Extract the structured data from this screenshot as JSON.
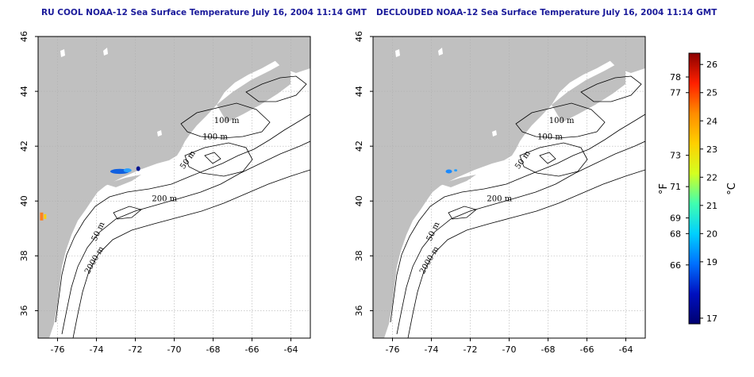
{
  "panels": [
    {
      "id": "left",
      "title": "RU COOL NOAA-12 Sea Surface Temperature July 16, 2004 11:14 GMT",
      "x_ticks": [
        "-76",
        "-74",
        "-72",
        "-70",
        "-68",
        "-66",
        "-64"
      ],
      "y_ticks": [
        "36",
        "38",
        "40",
        "42",
        "44",
        "46"
      ],
      "contour_labels": [
        "100 m",
        "100 m",
        "50 m",
        "200 m",
        "50 m",
        "2000 m"
      ]
    },
    {
      "id": "right",
      "title": "DECLOUDED NOAA-12 Sea Surface Temperature July 16, 2004 11:14 GMT",
      "x_ticks": [
        "-76",
        "-74",
        "-72",
        "-70",
        "-68",
        "-66",
        "-64"
      ],
      "y_ticks": [
        "36",
        "38",
        "40",
        "42",
        "44",
        "46"
      ],
      "contour_labels": [
        "100 m",
        "100 m",
        "50 m",
        "200 m",
        "50 m",
        "2000 m"
      ]
    }
  ],
  "colorbar": {
    "celsius_ticks": [
      "26",
      "25",
      "24",
      "23",
      "22",
      "21",
      "20",
      "19",
      "17"
    ],
    "fahrenheit_ticks": [
      "78",
      "77",
      "73",
      "71",
      "69",
      "68",
      "66"
    ],
    "celsius_unit": "°C",
    "fahrenheit_unit": "°F",
    "colors": [
      "#8b0000",
      "#ff2000",
      "#ff8c00",
      "#ffd000",
      "#d4ff20",
      "#40ffb0",
      "#00d0ff",
      "#0070ff",
      "#0010c0",
      "#000070"
    ]
  },
  "colors": {
    "land": "#c0c0c0",
    "ocean": "#ffffff",
    "contour": "#000000",
    "grid": "#b0b0b0",
    "title": "#1a1a9a"
  }
}
